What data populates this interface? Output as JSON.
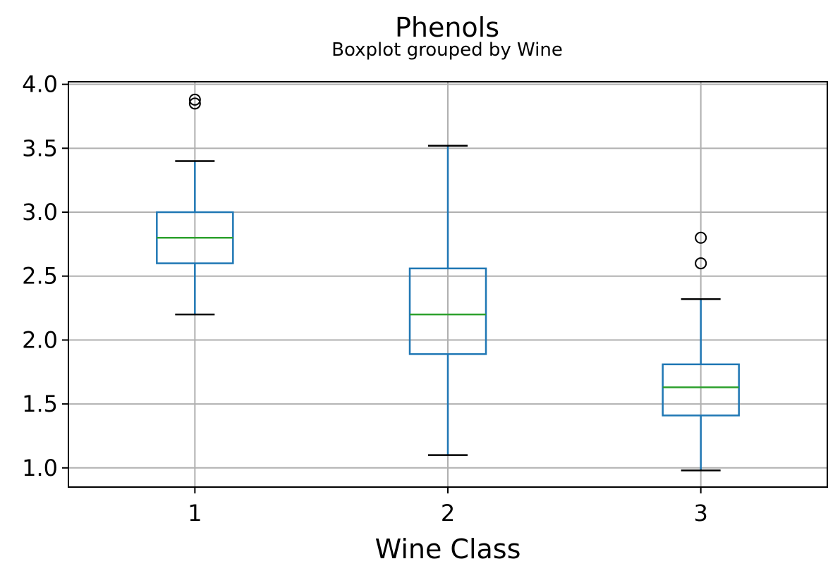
{
  "chart_data": {
    "type": "box",
    "title": "Phenols",
    "subtitle": "Boxplot grouped by Wine",
    "xlabel": "Wine Class",
    "ylabel": "",
    "ylim": [
      0.85,
      4.02
    ],
    "yticks": [
      "1.0",
      "1.5",
      "2.0",
      "2.5",
      "3.0",
      "3.5",
      "4.0"
    ],
    "categories": [
      "1",
      "2",
      "3"
    ],
    "grid": true,
    "colors": {
      "box": "#1f77b4",
      "median": "#2ca02c",
      "whisker_cap": "#000000",
      "grid": "#b0b0b0"
    },
    "boxes": [
      {
        "category": "1",
        "whisker_low": 2.2,
        "q1": 2.6,
        "median": 2.8,
        "q3": 3.0,
        "whisker_high": 3.4,
        "fliers": [
          3.85,
          3.88
        ]
      },
      {
        "category": "2",
        "whisker_low": 1.1,
        "q1": 1.89,
        "median": 2.2,
        "q3": 2.56,
        "whisker_high": 3.52,
        "fliers": []
      },
      {
        "category": "3",
        "whisker_low": 0.98,
        "q1": 1.41,
        "median": 1.63,
        "q3": 1.81,
        "whisker_high": 2.32,
        "fliers": [
          2.6,
          2.8
        ]
      }
    ]
  }
}
